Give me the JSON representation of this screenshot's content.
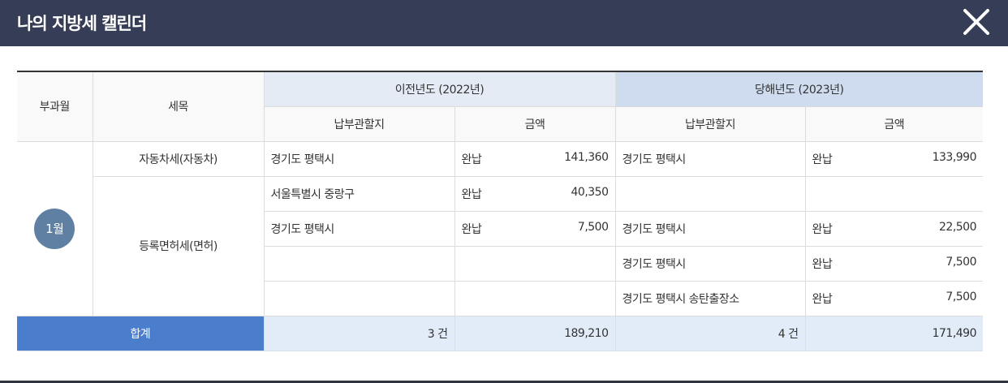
{
  "header": {
    "title": "나의 지방세 캘린더",
    "close_icon": "close-icon"
  },
  "table": {
    "col_month": "부과월",
    "col_item": "세목",
    "prev_year": "이전년도 (2022년)",
    "cur_year": "당해년도 (2023년)",
    "sub_office": "납부관할지",
    "sub_amount": "금액",
    "month": "1월",
    "rows": [
      {
        "item": "자동차세(자동차)",
        "prev_office": "경기도 평택시",
        "prev_status": "완납",
        "prev_amount": "141,360",
        "cur_office": "경기도 평택시",
        "cur_status": "완납",
        "cur_amount": "133,990"
      },
      {
        "item": "등록면허세(면허)",
        "prev_office": "서울특별시 중랑구",
        "prev_status": "완납",
        "prev_amount": "40,350",
        "cur_office": "",
        "cur_status": "",
        "cur_amount": ""
      },
      {
        "prev_office": "경기도 평택시",
        "prev_status": "완납",
        "prev_amount": "7,500",
        "cur_office": "경기도 평택시",
        "cur_status": "완납",
        "cur_amount": "22,500"
      },
      {
        "prev_office": "",
        "prev_status": "",
        "prev_amount": "",
        "cur_office": "경기도 평택시",
        "cur_status": "완납",
        "cur_amount": "7,500"
      },
      {
        "prev_office": "",
        "prev_status": "",
        "prev_amount": "",
        "cur_office": "경기도 평택시 송탄출장소",
        "cur_status": "완납",
        "cur_amount": "7,500"
      }
    ],
    "total": {
      "label": "합계",
      "prev_count": "3 건",
      "prev_sum": "189,210",
      "cur_count": "4 건",
      "cur_sum": "171,490"
    }
  },
  "colors": {
    "header_bg": "#363d56",
    "month_badge": "#5f80a3",
    "total_label_bg": "#4a7dcb",
    "total_bg": "#e1ecf8"
  }
}
